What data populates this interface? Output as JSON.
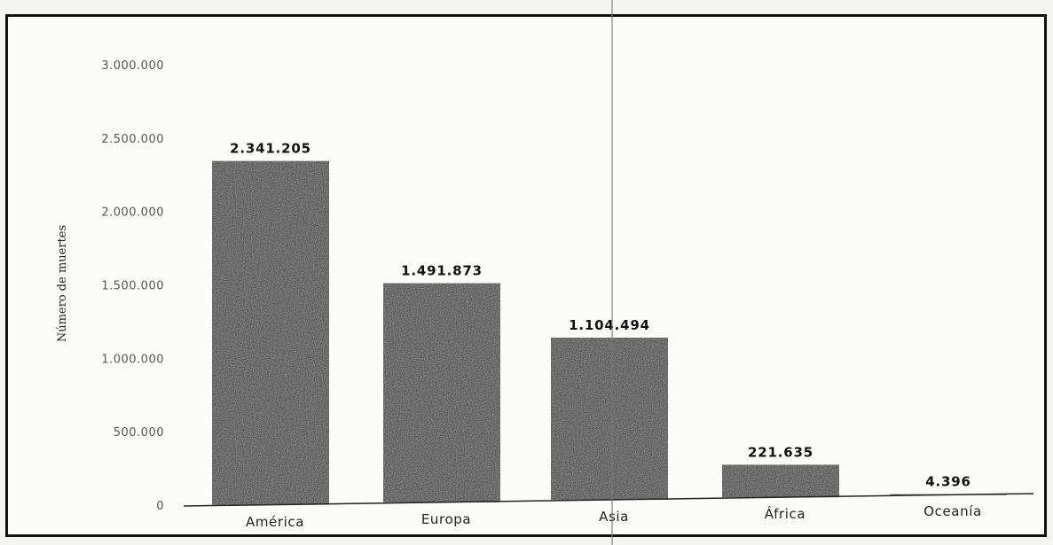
{
  "chart_data": {
    "type": "bar",
    "categories": [
      "América",
      "Europa",
      "Asia",
      "África",
      "Oceanía"
    ],
    "values": [
      2341205,
      1491873,
      1104494,
      221635,
      4396
    ],
    "data_labels": [
      "2.341.205",
      "1.491.873",
      "1.104.494",
      "221.635",
      "4.396"
    ],
    "title": "",
    "xlabel": "",
    "ylabel": "Número de muertes",
    "ylim": [
      0,
      3000000
    ],
    "yticks": [
      0,
      500000,
      1000000,
      1500000,
      2000000,
      2500000,
      3000000
    ],
    "ytick_labels": [
      "0",
      "500.000",
      "1.000.000",
      "1.500.000",
      "2.000.000",
      "2.500.000",
      "3.000.000"
    ],
    "grid": false,
    "bar_color": "#2a2a2a"
  }
}
